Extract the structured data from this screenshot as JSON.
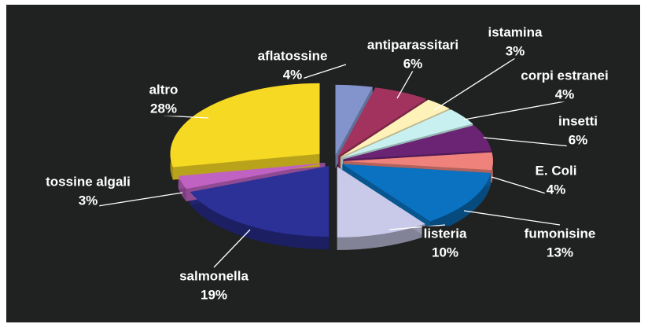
{
  "chart_data": {
    "type": "pie",
    "categories": [
      "aflatossine",
      "antiparassitari",
      "istamina",
      "corpi estranei",
      "insetti",
      "E. Coli",
      "fumonisine",
      "listeria",
      "salmonella",
      "tossine algali",
      "altro"
    ],
    "values": [
      4,
      6,
      3,
      4,
      6,
      4,
      13,
      10,
      19,
      3,
      28
    ],
    "value_labels": [
      "4%",
      "6%",
      "3%",
      "4%",
      "6%",
      "4%",
      "13%",
      "10%",
      "19%",
      "3%",
      "28%"
    ],
    "colors": [
      "#8394cc",
      "#a2335e",
      "#fff2b8",
      "#c9f0f0",
      "#6b2474",
      "#f0827c",
      "#0a72c0",
      "#c9c9ea",
      "#2b3196",
      "#c062c2",
      "#f6d923"
    ]
  }
}
